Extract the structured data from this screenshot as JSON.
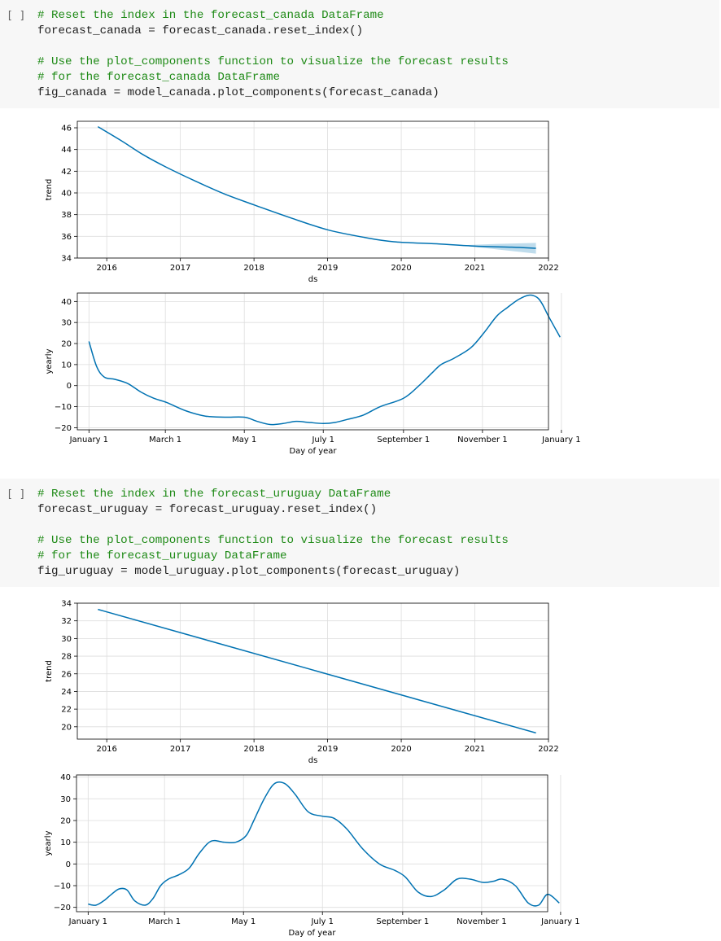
{
  "cells": [
    {
      "prompt": "[ ]",
      "code_lines": [
        {
          "type": "comment",
          "text": "# Reset the index in the forecast_canada DataFrame"
        },
        {
          "type": "code",
          "text": "forecast_canada = forecast_canada.reset_index()"
        },
        {
          "type": "blank",
          "text": ""
        },
        {
          "type": "comment",
          "text": "# Use the plot_components function to visualize the forecast results"
        },
        {
          "type": "comment",
          "text": "# for the forecast_canada DataFrame"
        },
        {
          "type": "code",
          "text": "fig_canada = model_canada.plot_components(forecast_canada)"
        }
      ]
    },
    {
      "prompt": "[ ]",
      "code_lines": [
        {
          "type": "comment",
          "text": "# Reset the index in the forecast_uruguay DataFrame"
        },
        {
          "type": "code",
          "text": "forecast_uruguay = forecast_uruguay.reset_index()"
        },
        {
          "type": "blank",
          "text": ""
        },
        {
          "type": "comment",
          "text": "# Use the plot_components function to visualize the forecast results"
        },
        {
          "type": "comment",
          "text": "# for the forecast_uruguay DataFrame"
        },
        {
          "type": "code",
          "text": "fig_uruguay = model_uruguay.plot_components(forecast_uruguay)"
        }
      ]
    }
  ],
  "colors": {
    "line": "#0072b2",
    "band": "#0072b2",
    "grid": "#dddddd",
    "cell_bg": "#f7f7f7",
    "comment": "#1e8a16"
  },
  "chart_data": [
    {
      "type": "line",
      "name": "canada-trend",
      "xlabel": "ds",
      "ylabel": "trend",
      "xlim": [
        2015.6,
        2022.0
      ],
      "ylim": [
        34,
        46.6
      ],
      "xticks": [
        2016,
        2017,
        2018,
        2019,
        2020,
        2021,
        2022
      ],
      "xticklabels": [
        "2016",
        "2017",
        "2018",
        "2019",
        "2020",
        "2021",
        "2022"
      ],
      "yticks": [
        34,
        36,
        38,
        40,
        42,
        44,
        46
      ],
      "yticklabels": [
        "34",
        "36",
        "38",
        "40",
        "42",
        "44",
        "46"
      ],
      "x": [
        2015.88,
        2016.2,
        2016.5,
        2016.8,
        2017.2,
        2017.6,
        2018.0,
        2018.5,
        2019.0,
        2019.5,
        2019.9,
        2020.5,
        2021.0,
        2021.5,
        2021.83
      ],
      "y": [
        46.1,
        44.8,
        43.5,
        42.4,
        41.1,
        39.9,
        38.9,
        37.7,
        36.6,
        35.9,
        35.5,
        35.3,
        35.1,
        35.0,
        34.9
      ],
      "band": {
        "x": [
          2020.9,
          2021.3,
          2021.83
        ],
        "lower": [
          35.1,
          34.8,
          34.4
        ],
        "upper": [
          35.2,
          35.3,
          35.4
        ]
      },
      "grid": true
    },
    {
      "type": "line",
      "name": "canada-yearly",
      "xlabel": "Day of year",
      "ylabel": "yearly",
      "xlim": [
        -9,
        355
      ],
      "ylim": [
        -21,
        44
      ],
      "xticks": [
        0,
        59,
        120,
        181,
        243,
        304,
        365
      ],
      "xticklabels": [
        "January 1",
        "March 1",
        "May 1",
        "July 1",
        "September 1",
        "November 1",
        "January 1"
      ],
      "yticks": [
        -20,
        -10,
        0,
        10,
        20,
        30,
        40
      ],
      "yticklabels": [
        "−20",
        "−10",
        "0",
        "10",
        "20",
        "30",
        "40"
      ],
      "x": [
        0,
        6,
        12,
        20,
        30,
        40,
        50,
        60,
        75,
        90,
        105,
        120,
        130,
        140,
        150,
        160,
        170,
        181,
        190,
        200,
        212,
        225,
        243,
        255,
        265,
        272,
        282,
        295,
        305,
        315,
        323,
        332,
        340,
        346,
        350,
        355,
        364
      ],
      "y": [
        21,
        9,
        4,
        3,
        1,
        -3,
        -6,
        -8,
        -12,
        -14.5,
        -15,
        -15,
        -17,
        -18.5,
        -18,
        -17,
        -17.5,
        -18,
        -17.5,
        -16,
        -14,
        -10,
        -6,
        0,
        6,
        10,
        13,
        18,
        25,
        33,
        37,
        41,
        43,
        42,
        39,
        33,
        23
      ],
      "grid": true
    },
    {
      "type": "line",
      "name": "uruguay-trend",
      "xlabel": "ds",
      "ylabel": "trend",
      "xlim": [
        2015.6,
        2022.0
      ],
      "ylim": [
        18.6,
        34.0
      ],
      "xticks": [
        2016,
        2017,
        2018,
        2019,
        2020,
        2021,
        2022
      ],
      "xticklabels": [
        "2016",
        "2017",
        "2018",
        "2019",
        "2020",
        "2021",
        "2022"
      ],
      "yticks": [
        20,
        22,
        24,
        26,
        28,
        30,
        32,
        34
      ],
      "yticklabels": [
        "20",
        "22",
        "24",
        "26",
        "28",
        "30",
        "32",
        "34"
      ],
      "x": [
        2015.88,
        2021.83
      ],
      "y": [
        33.3,
        19.3
      ],
      "grid": true
    },
    {
      "type": "line",
      "name": "uruguay-yearly",
      "xlabel": "Day of year",
      "ylabel": "yearly",
      "xlim": [
        -9,
        355
      ],
      "ylim": [
        -22,
        41
      ],
      "xticks": [
        0,
        59,
        120,
        181,
        243,
        304,
        365
      ],
      "xticklabels": [
        "January 1",
        "March 1",
        "May 1",
        "July 1",
        "September 1",
        "November 1",
        "January 1"
      ],
      "yticks": [
        -20,
        -10,
        0,
        10,
        20,
        30,
        40
      ],
      "yticklabels": [
        "−20",
        "−10",
        "0",
        "10",
        "20",
        "30",
        "40"
      ],
      "x": [
        0,
        6,
        12,
        18,
        24,
        30,
        36,
        44,
        50,
        56,
        62,
        70,
        78,
        86,
        95,
        105,
        114,
        122,
        128,
        136,
        144,
        152,
        160,
        170,
        181,
        190,
        200,
        212,
        225,
        237,
        245,
        255,
        265,
        275,
        285,
        295,
        305,
        313,
        320,
        330,
        340,
        348,
        355,
        364
      ],
      "y": [
        -18.5,
        -19,
        -17,
        -14,
        -11.5,
        -12,
        -17,
        -19,
        -16,
        -10,
        -7,
        -5,
        -2,
        5,
        10.5,
        10,
        10,
        13,
        20,
        30,
        37,
        37,
        32,
        24,
        22,
        21,
        16,
        7,
        0,
        -3,
        -6,
        -13,
        -15,
        -12,
        -7,
        -7,
        -8.5,
        -8,
        -7,
        -10,
        -18,
        -19,
        -14,
        -18
      ],
      "grid": true
    }
  ]
}
